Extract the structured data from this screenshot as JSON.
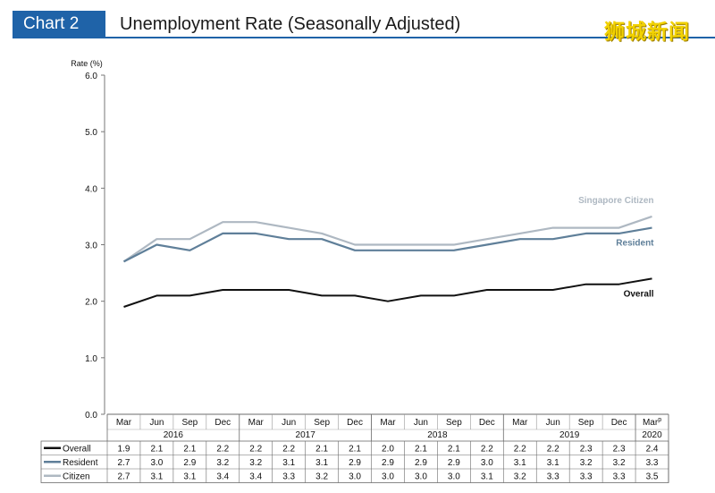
{
  "header": {
    "badge": "Chart 2",
    "title": "Unemployment Rate (Seasonally Adjusted)",
    "watermark": "狮城新闻"
  },
  "chart_data": {
    "type": "line",
    "title": "Unemployment Rate (Seasonally Adjusted)",
    "ylabel": "Rate (%)",
    "ylim": [
      0,
      6
    ],
    "yticks": [
      "0.0",
      "1.0",
      "2.0",
      "3.0",
      "4.0",
      "5.0",
      "6.0"
    ],
    "quarters": [
      "Mar",
      "Jun",
      "Sep",
      "Dec",
      "Mar",
      "Jun",
      "Sep",
      "Dec",
      "Mar",
      "Jun",
      "Sep",
      "Dec",
      "Mar",
      "Jun",
      "Sep",
      "Dec",
      "Mar"
    ],
    "last_quarter_superscript": "p",
    "years": [
      {
        "label": "2016",
        "span": 4
      },
      {
        "label": "2017",
        "span": 4
      },
      {
        "label": "2018",
        "span": 4
      },
      {
        "label": "2019",
        "span": 4
      },
      {
        "label": "2020",
        "span": 1
      }
    ],
    "series": [
      {
        "name": "Singapore Citizen",
        "table_name": "Citizen",
        "color": "#aeb8c2",
        "values": [
          2.7,
          3.1,
          3.1,
          3.4,
          3.4,
          3.3,
          3.2,
          3.0,
          3.0,
          3.0,
          3.0,
          3.1,
          3.2,
          3.3,
          3.3,
          3.3,
          3.5
        ]
      },
      {
        "name": "Resident",
        "table_name": "Resident",
        "color": "#5f7f99",
        "values": [
          2.7,
          3.0,
          2.9,
          3.2,
          3.2,
          3.1,
          3.1,
          2.9,
          2.9,
          2.9,
          2.9,
          3.0,
          3.1,
          3.1,
          3.2,
          3.2,
          3.3
        ]
      },
      {
        "name": "Overall",
        "table_name": "Overall",
        "color": "#111111",
        "values": [
          1.9,
          2.1,
          2.1,
          2.2,
          2.2,
          2.2,
          2.1,
          2.1,
          2.0,
          2.1,
          2.1,
          2.2,
          2.2,
          2.2,
          2.3,
          2.3,
          2.4
        ]
      }
    ],
    "table_order": [
      2,
      1,
      0
    ],
    "grid": false,
    "legend": "inline labels at right end of lines"
  }
}
